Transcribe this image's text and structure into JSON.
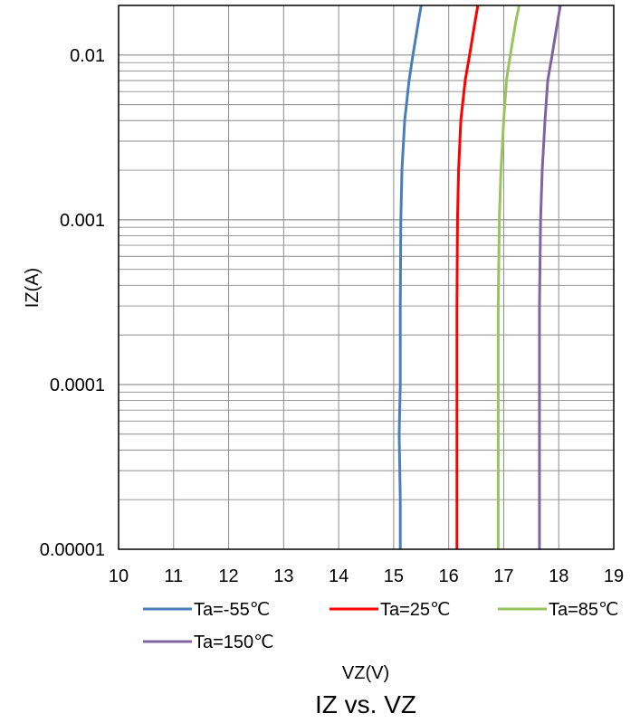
{
  "chart_data": {
    "type": "line",
    "title": "IZ vs. VZ",
    "xlabel": "VZ(V)",
    "ylabel": "IZ(A)",
    "xlim": [
      10,
      19
    ],
    "ylim": [
      1e-05,
      0.02
    ],
    "y_scale": "log",
    "grid": true,
    "legend_position": "bottom",
    "x_ticks": [
      "10",
      "11",
      "12",
      "13",
      "14",
      "15",
      "16",
      "17",
      "18",
      "19"
    ],
    "y_ticks": [
      "0.00001",
      "0.0001",
      "0.001",
      "0.01"
    ],
    "series": [
      {
        "name": "Ta=-55℃",
        "color": "#4a7ebb",
        "points": [
          [
            15.12,
            1e-05
          ],
          [
            15.12,
            2e-05
          ],
          [
            15.1,
            5e-05
          ],
          [
            15.12,
            0.0001
          ],
          [
            15.12,
            0.0003
          ],
          [
            15.13,
            0.001
          ],
          [
            15.15,
            0.002
          ],
          [
            15.2,
            0.004
          ],
          [
            15.28,
            0.007
          ],
          [
            15.35,
            0.01
          ],
          [
            15.45,
            0.016
          ],
          [
            15.5,
            0.02
          ]
        ]
      },
      {
        "name": "Ta=25℃",
        "color": "#ff0000",
        "points": [
          [
            16.15,
            1e-05
          ],
          [
            16.15,
            0.0001
          ],
          [
            16.15,
            0.0003
          ],
          [
            16.16,
            0.001
          ],
          [
            16.18,
            0.002
          ],
          [
            16.22,
            0.004
          ],
          [
            16.3,
            0.007
          ],
          [
            16.38,
            0.01
          ],
          [
            16.48,
            0.016
          ],
          [
            16.53,
            0.02
          ]
        ]
      },
      {
        "name": "Ta=85℃",
        "color": "#98c45c",
        "points": [
          [
            16.9,
            1e-05
          ],
          [
            16.9,
            0.0001
          ],
          [
            16.9,
            0.0003
          ],
          [
            16.92,
            0.001
          ],
          [
            16.95,
            0.002
          ],
          [
            17.0,
            0.004
          ],
          [
            17.05,
            0.007
          ],
          [
            17.12,
            0.01
          ],
          [
            17.22,
            0.016
          ],
          [
            17.28,
            0.02
          ]
        ]
      },
      {
        "name": "Ta=150℃",
        "color": "#8064a2",
        "points": [
          [
            17.65,
            1e-05
          ],
          [
            17.65,
            0.0001
          ],
          [
            17.65,
            0.0003
          ],
          [
            17.67,
            0.001
          ],
          [
            17.7,
            0.002
          ],
          [
            17.75,
            0.004
          ],
          [
            17.8,
            0.007
          ],
          [
            17.88,
            0.01
          ],
          [
            17.98,
            0.016
          ],
          [
            18.03,
            0.02
          ]
        ]
      }
    ]
  }
}
